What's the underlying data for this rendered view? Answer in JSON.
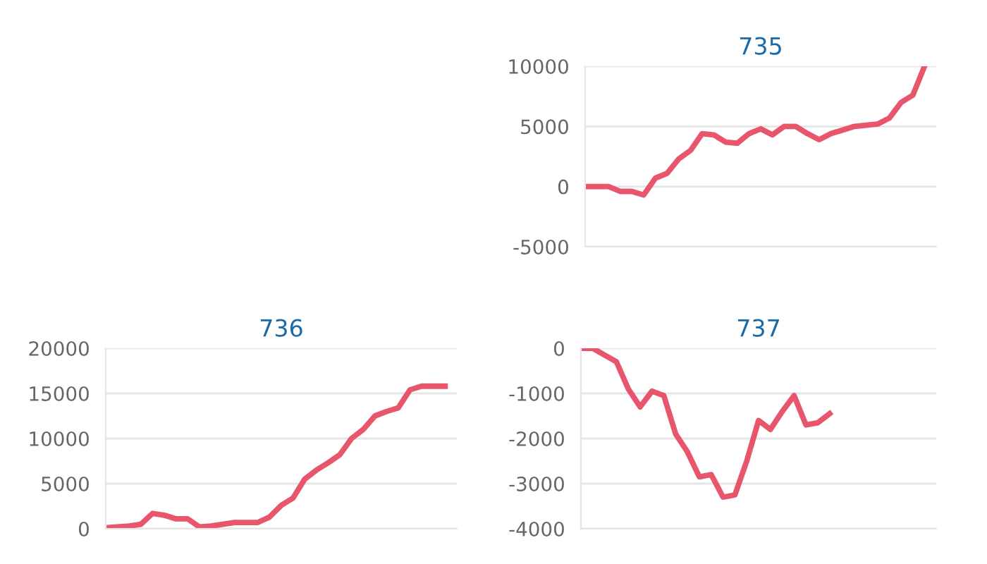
{
  "chart_data": [
    {
      "type": "line",
      "title": "735",
      "categories": [
        null,
        null,
        null,
        null,
        null,
        null,
        null,
        null,
        null,
        null,
        null,
        null,
        null,
        null,
        null,
        null,
        null,
        null,
        null,
        null,
        null,
        null,
        null,
        null,
        null,
        null,
        null,
        null,
        null,
        null,
        null
      ],
      "series": [
        {
          "color": "#e8566e",
          "values": [
            0,
            0,
            0,
            -400,
            -400,
            -700,
            700,
            1100,
            2300,
            3000,
            4400,
            4300,
            3700,
            3600,
            4400,
            4800,
            4300,
            5000,
            5000,
            4400,
            3900,
            4400,
            4700,
            5000,
            5100,
            5200,
            5700,
            7000,
            7600,
            10000,
            null
          ]
        }
      ],
      "ylim": [
        -5000,
        10000
      ],
      "yticks": [
        -5000,
        0,
        5000,
        10000
      ],
      "grid": "y",
      "tick_labels": "y",
      "marker": "none"
    },
    {
      "type": "line",
      "title": "736",
      "categories": [
        null,
        null,
        null,
        null,
        null,
        null,
        null,
        null,
        null,
        null,
        null,
        null,
        null,
        null,
        null,
        null,
        null,
        null,
        null,
        null,
        null,
        null,
        null,
        null,
        null,
        null,
        null,
        null,
        null,
        null,
        null
      ],
      "series": [
        {
          "color": "#e8566e",
          "values": [
            100,
            200,
            300,
            500,
            1700,
            1500,
            1100,
            1100,
            200,
            300,
            500,
            700,
            700,
            700,
            1300,
            2600,
            3400,
            5500,
            6500,
            7300,
            8200,
            10000,
            11000,
            12500,
            13000,
            13400,
            15400,
            15800,
            15800,
            15800,
            null
          ]
        }
      ],
      "ylim": [
        0,
        20000
      ],
      "yticks": [
        0,
        5000,
        10000,
        15000,
        20000
      ],
      "grid": "y",
      "tick_labels": "y",
      "marker": "none"
    },
    {
      "type": "line",
      "title": "737",
      "categories": [
        null,
        null,
        null,
        null,
        null,
        null,
        null,
        null,
        null,
        null,
        null,
        null,
        null,
        null,
        null,
        null,
        null,
        null,
        null,
        null,
        null,
        null,
        null,
        null,
        null,
        null,
        null,
        null,
        null,
        null,
        null
      ],
      "series": [
        {
          "color": "#e8566e",
          "values": [
            0,
            0,
            -150,
            -300,
            -900,
            -1300,
            -950,
            -1050,
            -1900,
            -2300,
            -2850,
            -2800,
            -3300,
            -3250,
            -2500,
            -1600,
            -1800,
            -1400,
            -1050,
            -1700,
            -1650,
            -1450,
            null,
            null,
            null,
            null,
            null,
            null,
            null,
            null,
            null
          ]
        }
      ],
      "ylim": [
        -4000,
        0
      ],
      "yticks": [
        -4000,
        -3000,
        -2000,
        -1000,
        0
      ],
      "grid": "y",
      "tick_labels": "y",
      "marker": "none"
    }
  ]
}
